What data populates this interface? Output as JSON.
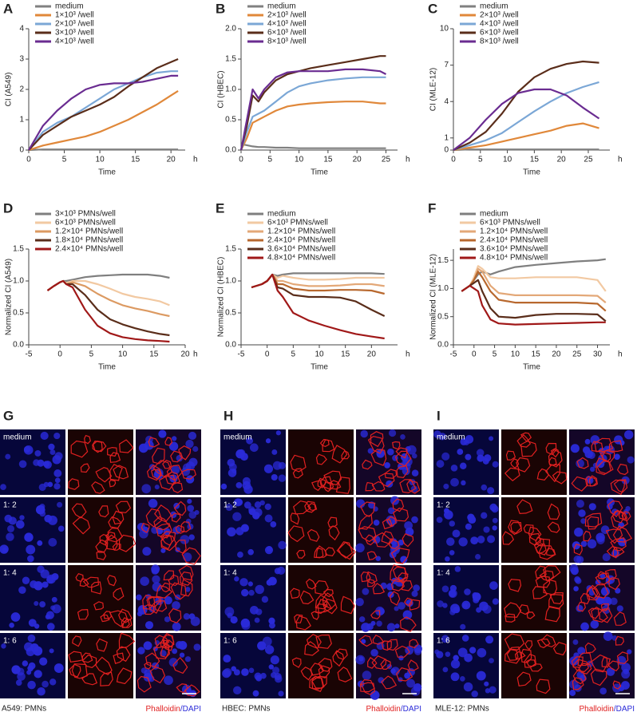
{
  "chart_data": [
    {
      "type": "line",
      "panel": "A",
      "x_label": "Time",
      "x_unit": "h",
      "y_label": "CI (A549)",
      "x": [
        0,
        2,
        4,
        6,
        8,
        10,
        12,
        14,
        16,
        18,
        20,
        21
      ],
      "xlim": [
        0,
        22
      ],
      "xticks": [
        0,
        5,
        10,
        15,
        20
      ],
      "ylim": [
        0,
        4
      ],
      "yticks": [
        0,
        1,
        2,
        3,
        4
      ],
      "series": [
        {
          "name": "medium",
          "color": "#808080",
          "values": [
            0,
            0.02,
            0.02,
            0.02,
            0.02,
            0.02,
            0.02,
            0.02,
            0.02,
            0.02,
            0.02,
            0.02
          ]
        },
        {
          "name": "1×10³ /well",
          "color": "#e0883a",
          "values": [
            0,
            0.15,
            0.25,
            0.35,
            0.45,
            0.6,
            0.8,
            1.0,
            1.25,
            1.5,
            1.8,
            1.95
          ]
        },
        {
          "name": "2×10³ /well",
          "color": "#7ba7d6",
          "values": [
            0,
            0.6,
            0.9,
            1.1,
            1.4,
            1.7,
            2.0,
            2.2,
            2.4,
            2.55,
            2.6,
            2.6
          ]
        },
        {
          "name": "3×10³ /well",
          "color": "#5a2d1a",
          "values": [
            0,
            0.5,
            0.8,
            1.1,
            1.3,
            1.5,
            1.75,
            2.1,
            2.4,
            2.7,
            2.9,
            3.0
          ]
        },
        {
          "name": "4×10³ /well",
          "color": "#6a2c91",
          "values": [
            0,
            0.8,
            1.3,
            1.7,
            2.0,
            2.15,
            2.2,
            2.2,
            2.25,
            2.35,
            2.45,
            2.45
          ]
        }
      ]
    },
    {
      "type": "line",
      "panel": "B",
      "x_label": "Time",
      "x_unit": "h",
      "y_label": "CI (HBEC)",
      "x": [
        0,
        1,
        2,
        3,
        4,
        6,
        8,
        10,
        12,
        15,
        18,
        21,
        24,
        25
      ],
      "xlim": [
        0,
        27
      ],
      "xticks": [
        0,
        5,
        10,
        15,
        20,
        25
      ],
      "ylim": [
        0,
        2
      ],
      "yticks": [
        {
          "value": 0,
          "label": "0.0"
        },
        0.5,
        {
          "value": 1,
          "label": "1.0"
        },
        1.5,
        {
          "value": 2,
          "label": "2.0"
        }
      ],
      "series": [
        {
          "name": "medium",
          "color": "#808080",
          "values": [
            0.1,
            0.08,
            0.06,
            0.05,
            0.05,
            0.04,
            0.04,
            0.03,
            0.03,
            0.03,
            0.03,
            0.03,
            0.03,
            0.03
          ]
        },
        {
          "name": "2×10³ /well",
          "color": "#e0883a",
          "values": [
            0,
            0.2,
            0.45,
            0.5,
            0.55,
            0.65,
            0.72,
            0.75,
            0.77,
            0.79,
            0.8,
            0.8,
            0.77,
            0.77
          ]
        },
        {
          "name": "4×10³ /well",
          "color": "#7ba7d6",
          "values": [
            0,
            0.3,
            0.55,
            0.6,
            0.65,
            0.8,
            0.95,
            1.05,
            1.1,
            1.15,
            1.18,
            1.2,
            1.2,
            1.2
          ]
        },
        {
          "name": "6×10³ /well",
          "color": "#5a2d1a",
          "values": [
            0,
            0.4,
            0.9,
            0.8,
            0.95,
            1.15,
            1.25,
            1.3,
            1.35,
            1.4,
            1.45,
            1.5,
            1.55,
            1.55
          ]
        },
        {
          "name": "8×10³ /well",
          "color": "#6a2c91",
          "values": [
            0,
            0.5,
            1.0,
            0.85,
            1.0,
            1.2,
            1.28,
            1.3,
            1.3,
            1.3,
            1.33,
            1.33,
            1.3,
            1.25
          ]
        }
      ]
    },
    {
      "type": "line",
      "panel": "C",
      "x_label": "Time",
      "x_unit": "h",
      "y_label": "CI (MLE-12)",
      "x": [
        0,
        3,
        6,
        9,
        12,
        15,
        18,
        21,
        24,
        27
      ],
      "xlim": [
        0,
        29
      ],
      "xticks": [
        0,
        5,
        10,
        15,
        20,
        25
      ],
      "ylim": [
        0,
        10
      ],
      "yticks": [
        0,
        1,
        4,
        7,
        10
      ],
      "series": [
        {
          "name": "medium",
          "color": "#808080",
          "values": [
            0,
            0.05,
            0.05,
            0.05,
            0.05,
            0.05,
            0.05,
            0.05,
            0.05,
            0.05
          ]
        },
        {
          "name": "2×10³ /well",
          "color": "#e0883a",
          "values": [
            0,
            0.2,
            0.4,
            0.7,
            1.0,
            1.3,
            1.6,
            2.0,
            2.2,
            1.8
          ]
        },
        {
          "name": "4×10³ /well",
          "color": "#7ba7d6",
          "values": [
            0,
            0.4,
            0.8,
            1.4,
            2.3,
            3.2,
            4.0,
            4.7,
            5.2,
            5.6
          ]
        },
        {
          "name": "6×10³ /well",
          "color": "#5a2d1a",
          "values": [
            0,
            0.6,
            1.5,
            3.0,
            4.8,
            6.0,
            6.7,
            7.1,
            7.3,
            7.2
          ]
        },
        {
          "name": "8×10³ /well",
          "color": "#6a2c91",
          "values": [
            0,
            1.0,
            2.5,
            3.8,
            4.7,
            5.0,
            5.0,
            4.5,
            3.5,
            2.6
          ]
        }
      ]
    },
    {
      "type": "line",
      "panel": "D",
      "x_label": "Time",
      "x_unit": "h",
      "y_label": "Normalized CI (A549)",
      "x": [
        -2,
        -1,
        0,
        0.5,
        1,
        2,
        4,
        6,
        8,
        10,
        12,
        14,
        16,
        17.5
      ],
      "xlim": [
        -5,
        20
      ],
      "xticks": [
        -5,
        0,
        5,
        10,
        15,
        20
      ],
      "ylim": [
        0,
        1.5
      ],
      "yticks": [
        {
          "value": 0,
          "label": "0.0"
        },
        0.5,
        {
          "value": 1,
          "label": "1.0"
        },
        1.5
      ],
      "series": [
        {
          "name": "3×10³ PMNs/well",
          "color": "#7f7f7f",
          "values": [
            0.85,
            0.92,
            0.98,
            1.0,
            1.0,
            1.02,
            1.06,
            1.08,
            1.09,
            1.1,
            1.1,
            1.1,
            1.08,
            1.05
          ]
        },
        {
          "name": "6×10³ PMNs/well",
          "color": "#f2c9a2",
          "values": [
            0.85,
            0.92,
            0.98,
            1.0,
            0.97,
            1.0,
            1.0,
            0.95,
            0.88,
            0.8,
            0.75,
            0.72,
            0.68,
            0.62
          ]
        },
        {
          "name": "1.2×10⁴ PMNs/well",
          "color": "#dc9a62",
          "values": [
            0.85,
            0.92,
            0.98,
            1.0,
            0.95,
            0.98,
            0.92,
            0.8,
            0.7,
            0.62,
            0.57,
            0.53,
            0.48,
            0.45
          ]
        },
        {
          "name": "1.8×10⁴ PMNs/well",
          "color": "#5a2d1a",
          "values": [
            0.85,
            0.92,
            0.98,
            1.0,
            0.95,
            0.95,
            0.78,
            0.55,
            0.4,
            0.32,
            0.26,
            0.21,
            0.17,
            0.15
          ]
        },
        {
          "name": "2.4×10⁴ PMNs/well",
          "color": "#a01818",
          "values": [
            0.85,
            0.92,
            0.98,
            1.0,
            0.95,
            0.9,
            0.55,
            0.3,
            0.18,
            0.12,
            0.09,
            0.07,
            0.06,
            0.05
          ]
        }
      ]
    },
    {
      "type": "line",
      "panel": "E",
      "x_label": "Time",
      "x_unit": "h",
      "y_label": "Normalized CI (HBEC)",
      "x": [
        -3,
        -1,
        0,
        1,
        2,
        3,
        5,
        8,
        11,
        14,
        17,
        20,
        22.5
      ],
      "xlim": [
        -5,
        25
      ],
      "xticks": [
        -5,
        0,
        5,
        10,
        15,
        20
      ],
      "ylim": [
        0,
        1.5
      ],
      "yticks": [
        {
          "value": 0,
          "label": "0.0"
        },
        0.5,
        {
          "value": 1,
          "label": "1.0"
        },
        1.5
      ],
      "series": [
        {
          "name": "medium",
          "color": "#7f7f7f",
          "values": [
            0.9,
            0.95,
            1.0,
            1.1,
            1.08,
            1.1,
            1.12,
            1.12,
            1.12,
            1.12,
            1.12,
            1.12,
            1.11
          ]
        },
        {
          "name": "6×10³ PMNs/well",
          "color": "#f2c9a2",
          "values": [
            0.9,
            0.95,
            1.0,
            1.1,
            1.05,
            1.08,
            1.05,
            1.02,
            1.02,
            1.03,
            1.05,
            1.05,
            1.05
          ]
        },
        {
          "name": "1.2×10⁴ PMNs/well",
          "color": "#e3a878",
          "values": [
            0.9,
            0.95,
            1.0,
            1.1,
            1.0,
            1.0,
            0.95,
            0.92,
            0.92,
            0.93,
            0.95,
            0.95,
            0.92
          ]
        },
        {
          "name": "2.4×10⁴ PMNs/well",
          "color": "#b8682e",
          "values": [
            0.9,
            0.95,
            1.0,
            1.1,
            0.95,
            0.95,
            0.88,
            0.85,
            0.85,
            0.86,
            0.86,
            0.85,
            0.8
          ]
        },
        {
          "name": "3.6×10⁴ PMNs/well",
          "color": "#5a2d1a",
          "values": [
            0.9,
            0.95,
            1.0,
            1.1,
            0.9,
            0.88,
            0.78,
            0.75,
            0.75,
            0.74,
            0.68,
            0.55,
            0.45
          ]
        },
        {
          "name": "4.8×10⁴ PMNs/well",
          "color": "#a01818",
          "values": [
            0.9,
            0.95,
            1.0,
            1.1,
            0.85,
            0.75,
            0.5,
            0.38,
            0.3,
            0.23,
            0.17,
            0.13,
            0.1
          ]
        }
      ]
    },
    {
      "type": "line",
      "panel": "F",
      "x_label": "Time",
      "x_unit": "h",
      "y_label": "Normalized CI (MLE-12)",
      "x": [
        -3,
        -1,
        0,
        1,
        2,
        4,
        6,
        10,
        15,
        20,
        25,
        30,
        32
      ],
      "xlim": [
        -5,
        33
      ],
      "xticks": [
        -5,
        0,
        5,
        10,
        15,
        20,
        25,
        30
      ],
      "ylim": [
        0,
        1.7
      ],
      "yticks": [
        {
          "value": 0,
          "label": "0.0"
        },
        0.5,
        {
          "value": 1,
          "label": "1.0"
        },
        1.5
      ],
      "series": [
        {
          "name": "medium",
          "color": "#7f7f7f",
          "values": [
            0.95,
            1.05,
            1.15,
            1.25,
            1.3,
            1.25,
            1.3,
            1.38,
            1.42,
            1.45,
            1.48,
            1.5,
            1.52
          ]
        },
        {
          "name": "6×10³ PMNs/well",
          "color": "#f2c9a2",
          "values": [
            0.95,
            1.05,
            1.2,
            1.4,
            1.35,
            1.2,
            1.18,
            1.18,
            1.2,
            1.2,
            1.2,
            1.15,
            0.95
          ]
        },
        {
          "name": "1.2×10⁴ PMNs/well",
          "color": "#e3a878",
          "values": [
            0.95,
            1.05,
            1.15,
            1.35,
            1.3,
            1.05,
            0.92,
            0.88,
            0.88,
            0.88,
            0.88,
            0.87,
            0.75
          ]
        },
        {
          "name": "2.4×10⁴ PMNs/well",
          "color": "#b8682e",
          "values": [
            0.95,
            1.05,
            1.15,
            1.3,
            1.2,
            0.95,
            0.8,
            0.75,
            0.75,
            0.75,
            0.75,
            0.73,
            0.6
          ]
        },
        {
          "name": "3.6×10⁴ PMNs/well",
          "color": "#5a2d1a",
          "values": [
            0.95,
            1.05,
            1.1,
            1.15,
            0.95,
            0.65,
            0.5,
            0.48,
            0.53,
            0.55,
            0.55,
            0.54,
            0.42
          ]
        },
        {
          "name": "4.8×10⁴ PMNs/well",
          "color": "#a01818",
          "values": [
            0.95,
            1.05,
            1.0,
            0.95,
            0.7,
            0.45,
            0.38,
            0.36,
            0.37,
            0.38,
            0.39,
            0.4,
            0.4
          ]
        }
      ]
    }
  ],
  "image_panels": [
    {
      "panel": "G",
      "rows": [
        "medium",
        "1: 2",
        "1: 4",
        "1: 6"
      ],
      "caption": "A549: PMNs",
      "stain_red": "Phalloidin",
      "stain_blue": "/DAPI"
    },
    {
      "panel": "H",
      "rows": [
        "medium",
        "1: 2",
        "1: 4",
        "1: 6"
      ],
      "caption": "HBEC: PMNs",
      "stain_red": "Phalloidin",
      "stain_blue": "/DAPI"
    },
    {
      "panel": "I",
      "rows": [
        "medium",
        "1: 2",
        "1: 4",
        "1: 6"
      ],
      "caption": "MLE-12: PMNs",
      "stain_red": "Phalloidin",
      "stain_blue": "/DAPI"
    }
  ]
}
